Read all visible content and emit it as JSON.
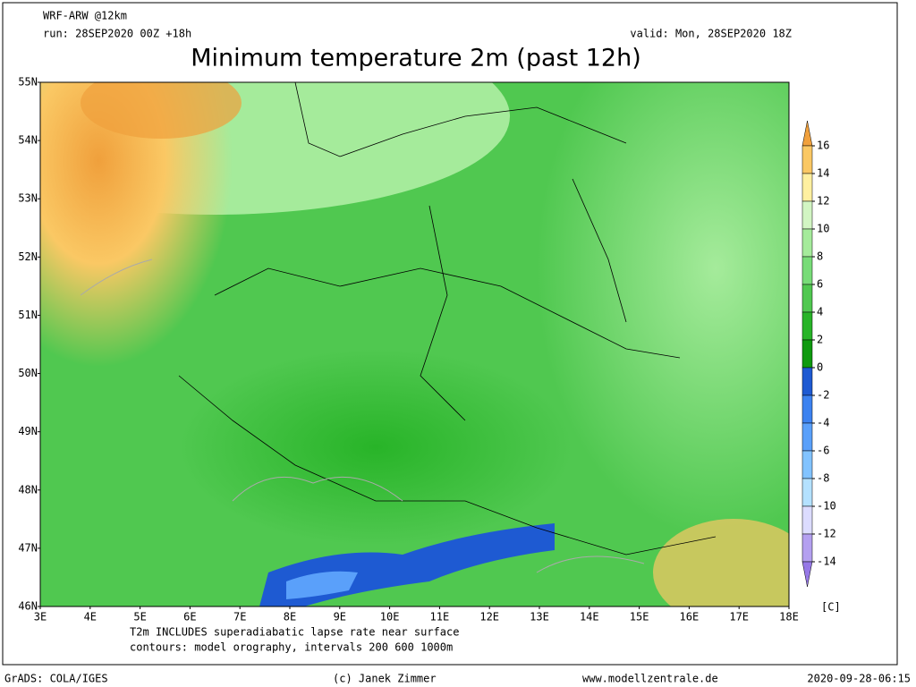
{
  "header": {
    "model": "WRF-ARW @12km",
    "run": "run: 28SEP2020 00Z +18h",
    "valid": "valid: Mon, 28SEP2020 18Z",
    "title": "Minimum temperature 2m (past 12h)"
  },
  "map": {
    "lat_labels": [
      "55N",
      "54N",
      "53N",
      "52N",
      "51N",
      "50N",
      "49N",
      "48N",
      "47N",
      "46N"
    ],
    "lon_labels": [
      "3E",
      "4E",
      "5E",
      "6E",
      "7E",
      "8E",
      "9E",
      "10E",
      "11E",
      "12E",
      "13E",
      "14E",
      "15E",
      "16E",
      "17E",
      "18E"
    ],
    "notes": [
      "T2m INCLUDES superadiabatic lapse rate near surface",
      "contours: model orography, intervals 200 600 1000m"
    ]
  },
  "colorbar": {
    "unit": "[C]",
    "ticks": [
      16,
      14,
      12,
      10,
      8,
      6,
      4,
      2,
      0,
      -2,
      -4,
      -6,
      -8,
      -10,
      -12,
      -14
    ],
    "colors": [
      "#f0a03c",
      "#fac864",
      "#fff0a0",
      "#d2f5c3",
      "#a5eb9b",
      "#78dc78",
      "#50c850",
      "#28b428",
      "#0f9a0f",
      "#1e5ad2",
      "#3c82f0",
      "#5aa0fa",
      "#82c3ff",
      "#b4e1ff",
      "#dcdcff",
      "#b4a0f0",
      "#9678e6"
    ]
  },
  "footer": {
    "left": "GrADS: COLA/IGES",
    "center": "(c) Janek Zimmer",
    "url": "www.modellzentrale.de",
    "timestamp": "2020-09-28-06:15"
  }
}
